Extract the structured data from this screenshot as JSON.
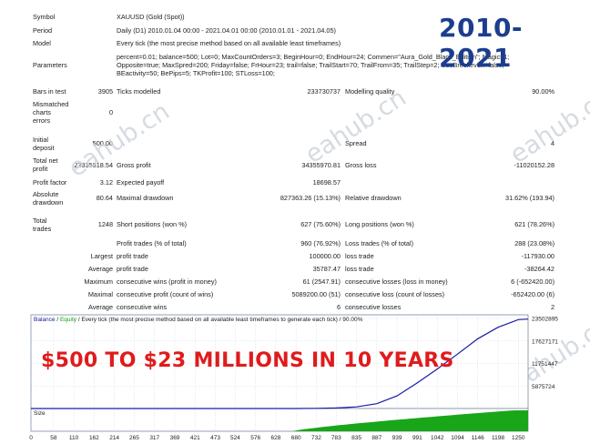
{
  "banner": "2010-2021",
  "headline": "$500 TO $23 MILLIONS IN 10 YEARS",
  "watermark": "eahub.cn",
  "report": {
    "symbol_label": "Symbol",
    "symbol_value": "XAUUSD (Gold (Spot))",
    "period_label": "Period",
    "period_value": "Daily (D1) 2010.01.04 00:00 - 2021.04.01 00:00 (2010.01.01 - 2021.04.05)",
    "model_label": "Model",
    "model_value": "Every tick (the most precise method based on all available least timeframes)",
    "parameters_label": "Parameters",
    "parameters_line1": "percent=0.01; balance=500; Lot=0; MaxCountOrders=3; BeginHour=0; EndHour=24; Commen=\"Aura_Gold_Black_Edition\"; Magic=1;",
    "parameters_line2": "Opposite=true; MaxSpred=200; Friday=false; FrHour=23; trail=false; TrailStart=70; TrailFrom=35; TrailStep=2; UseBreckeven=false;",
    "parameters_line3": "BEactivity=50; BePips=5; TKProfit=100; STLoss=100;",
    "bars_label": "Bars in test",
    "bars_value": "3905",
    "ticks_label": "Ticks modelled",
    "ticks_value": "233730737",
    "quality_label": "Modelling quality",
    "quality_value": "90.00%",
    "mismatch_label_1": "Mismatched",
    "mismatch_label_2": "charts",
    "mismatch_label_3": "errors",
    "mismatch_value": "0",
    "deposit_label_1": "Initial",
    "deposit_label_2": "deposit",
    "deposit_value": "500.00",
    "spread_label": "Spread",
    "spread_value": "4",
    "netprofit_label_1": "Total net",
    "netprofit_label_2": "profit",
    "netprofit_value": "23335818.54",
    "grossprofit_label": "Gross profit",
    "grossprofit_value": "34355970.81",
    "grossloss_label": "Gross loss",
    "grossloss_value": "-11020152.28",
    "pf_label": "Profit factor",
    "pf_value": "3.12",
    "payoff_label": "Expected payoff",
    "payoff_value": "18698.57",
    "absdd_label_1": "Absolute",
    "absdd_label_2": "drawdown",
    "absdd_value": "80.64",
    "maxdd_label": "Maximal drawdown",
    "maxdd_value": "827363.26 (15.13%)",
    "reldd_label": "Relative drawdown",
    "reldd_value": "31.62% (193.94)",
    "trades_label_1": "Total",
    "trades_label_2": "trades",
    "trades_value": "1248",
    "short_label": "Short positions (won %)",
    "short_value": "627 (75.60%)",
    "long_label": "Long positions (won %)",
    "long_value": "621 (78.26%)",
    "ptrades_label": "Profit trades (% of total)",
    "ptrades_value": "960 (76.92%)",
    "ltrades_label": "Loss trades (% of total)",
    "ltrades_value": "288 (23.08%)",
    "largest_label": "Largest",
    "largest_profit_label": "profit trade",
    "largest_profit_value": "100000.00",
    "largest_loss_label": "loss trade",
    "largest_loss_value": "-117930.00",
    "average_label": "Average",
    "average_profit_label": "profit trade",
    "average_profit_value": "35787.47",
    "average_loss_label": "loss trade",
    "average_loss_value": "-38264.42",
    "maximum_label": "Maximum",
    "max_cw_label": "consecutive wins (profit in money)",
    "max_cw_value": "61 (2547.91)",
    "max_cl_label": "consecutive losses (loss in money)",
    "max_cl_value": "6 (-652420.00)",
    "maximal_label": "Maximal",
    "mx_cp_label": "consecutive profit (count of wins)",
    "mx_cp_value": "5089200.00 (51)",
    "mx_cl_label": "consecutive loss (count of losses)",
    "mx_cl_value": "-652420.00 (6)",
    "average2_label": "Average",
    "avg_cw_label": "consecutive wins",
    "avg_cw_value": "6",
    "avg_cl_label": "consecutive losses",
    "avg_cl_value": "2"
  },
  "chart": {
    "title_balance": "Balance",
    "title_sep": "/",
    "title_equity": "Equity",
    "title_rest": "/ Every tick (the most precise method based on all available least timeframes to generate each tick) / 90.00%",
    "size_label": "Size",
    "colors": {
      "balance": "#1a1aa6",
      "size": "#19a619",
      "grid": "#b9c6d8"
    }
  },
  "chart_data": {
    "type": "line",
    "series": [
      {
        "name": "Balance",
        "x": [
          0,
          58,
          110,
          162,
          214,
          265,
          317,
          369,
          421,
          473,
          524,
          576,
          628,
          680,
          732,
          783,
          835,
          887,
          939,
          991,
          1042,
          1094,
          1146,
          1198,
          1250,
          1275
        ],
        "values": [
          500,
          500,
          520,
          560,
          620,
          700,
          800,
          950,
          1150,
          1450,
          1850,
          2400,
          3600,
          11800,
          40000,
          132000,
          420000,
          1250000,
          3300000,
          6700000,
          10300000,
          14200000,
          18200000,
          21200000,
          23200000,
          23336318
        ]
      }
    ],
    "y_ticks": [
      "23502895",
      "17627171",
      "11751447",
      "5875724"
    ],
    "x_ticks": [
      "0",
      "58",
      "110",
      "162",
      "214",
      "265",
      "317",
      "369",
      "421",
      "473",
      "524",
      "576",
      "628",
      "680",
      "732",
      "783",
      "835",
      "887",
      "939",
      "991",
      "1042",
      "1094",
      "1146",
      "1198",
      "1250"
    ],
    "ylim": [
      0,
      23502895
    ],
    "xlim": [
      0,
      1275
    ],
    "size_series": {
      "name": "Size",
      "x_start": 670,
      "x_end": 1275
    },
    "grid": true
  }
}
